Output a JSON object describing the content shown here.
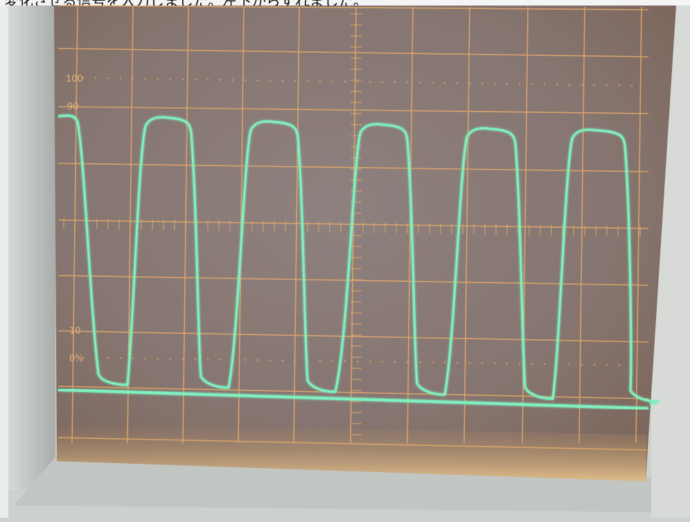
{
  "caption": "変化させる信号を入力しました。左下からずれました。",
  "graticule": {
    "label_100": "100",
    "label_90": "90",
    "label_10": "10",
    "label_0": "0%"
  },
  "trace": {
    "color": "#7ff0c0",
    "cycles_visible": 5.5
  },
  "colors": {
    "screen": "#8a7a76",
    "grid": "#e0a868",
    "bezel": "#c9ccc9"
  }
}
